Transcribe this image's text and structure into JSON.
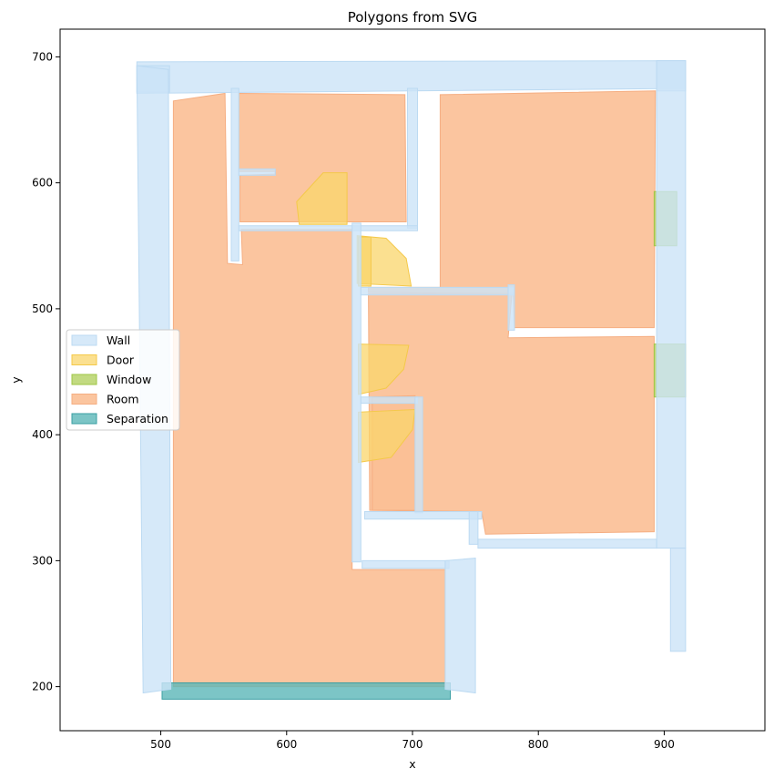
{
  "chart_data": {
    "type": "polygon",
    "title": "Polygons from SVG",
    "xlabel": "x",
    "ylabel": "y",
    "xlim": [
      420,
      980
    ],
    "ylim": [
      165,
      722
    ],
    "xticks": [
      500,
      600,
      700,
      800,
      900
    ],
    "yticks": [
      200,
      300,
      400,
      500,
      600,
      700
    ],
    "legend": {
      "position": "center-left"
    },
    "categories": [
      {
        "name": "Wall",
        "fill": "#cce3f7",
        "edge": "#bcdaf2",
        "alpha": 0.8
      },
      {
        "name": "Door",
        "fill": "#f9d66b",
        "edge": "#f4c94a",
        "alpha": 0.75
      },
      {
        "name": "Window",
        "fill": "#b3d162",
        "edge": "#9fc545",
        "alpha": 0.8
      },
      {
        "name": "Room",
        "fill": "#fbbf95",
        "edge": "#f5ae82",
        "alpha": 0.9
      },
      {
        "name": "Separation",
        "fill": "#5bb6b8",
        "edge": "#3a9fa3",
        "alpha": 0.8
      }
    ],
    "polygons": [
      {
        "category": "Room",
        "points": [
          [
            510,
            200
          ],
          [
            726,
            200
          ],
          [
            726,
            293
          ],
          [
            652,
            293
          ],
          [
            652,
            563
          ],
          [
            564,
            563
          ],
          [
            565,
            535
          ],
          [
            553,
            536
          ],
          [
            551,
            671
          ],
          [
            510,
            665
          ]
        ]
      },
      {
        "category": "Room",
        "points": [
          [
            562,
            671
          ],
          [
            694,
            670
          ],
          [
            695,
            569
          ],
          [
            563,
            569
          ],
          [
            563,
            606
          ],
          [
            591,
            607
          ],
          [
            591,
            609
          ],
          [
            562,
            609
          ]
        ]
      },
      {
        "category": "Room",
        "points": [
          [
            722,
            670
          ],
          [
            893,
            673
          ],
          [
            892,
            485
          ],
          [
            781,
            485
          ],
          [
            780,
            512
          ],
          [
            665,
            513
          ],
          [
            665,
            517
          ],
          [
            722,
            517
          ]
        ]
      },
      {
        "category": "Room",
        "points": [
          [
            665,
            512
          ],
          [
            779,
            512
          ],
          [
            776,
            477
          ],
          [
            892,
            478
          ],
          [
            892,
            323
          ],
          [
            758,
            321
          ],
          [
            755,
            339
          ],
          [
            666,
            340
          ]
        ]
      },
      {
        "category": "Room",
        "points": [
          [
            668,
            430
          ],
          [
            702,
            431
          ],
          [
            702,
            340
          ],
          [
            668,
            340
          ]
        ]
      },
      {
        "category": "Door",
        "points": [
          [
            608,
            585
          ],
          [
            629,
            608
          ],
          [
            648,
            608
          ],
          [
            648,
            567
          ],
          [
            610,
            567
          ]
        ]
      },
      {
        "category": "Door",
        "points": [
          [
            656,
            520
          ],
          [
            656,
            558
          ],
          [
            679,
            556
          ],
          [
            695,
            540
          ],
          [
            699,
            518
          ]
        ]
      },
      {
        "category": "Door",
        "points": [
          [
            657,
            432
          ],
          [
            657,
            472
          ],
          [
            697,
            471
          ],
          [
            693,
            452
          ],
          [
            679,
            437
          ]
        ]
      },
      {
        "category": "Door",
        "points": [
          [
            657,
            378
          ],
          [
            657,
            418
          ],
          [
            702,
            420
          ],
          [
            700,
            404
          ],
          [
            683,
            382
          ]
        ]
      },
      {
        "category": "Door",
        "points": [
          [
            657,
            518
          ],
          [
            657,
            557
          ],
          [
            667,
            557
          ],
          [
            667,
            518
          ]
        ]
      },
      {
        "category": "Window",
        "points": [
          [
            892,
            550
          ],
          [
            910,
            550
          ],
          [
            910,
            593
          ],
          [
            892,
            593
          ]
        ]
      },
      {
        "category": "Window",
        "points": [
          [
            892,
            430
          ],
          [
            917,
            430
          ],
          [
            917,
            472
          ],
          [
            892,
            472
          ]
        ]
      },
      {
        "category": "Separation",
        "points": [
          [
            501,
            190
          ],
          [
            730,
            190
          ],
          [
            730,
            203
          ],
          [
            501,
            203
          ]
        ]
      },
      {
        "category": "Wall",
        "points": [
          [
            481,
            671
          ],
          [
            917,
            675
          ],
          [
            917,
            697
          ],
          [
            481,
            696
          ]
        ]
      },
      {
        "category": "Wall",
        "points": [
          [
            481,
            672
          ],
          [
            507,
            672
          ],
          [
            507,
            693
          ],
          [
            481,
            693
          ]
        ]
      },
      {
        "category": "Wall",
        "points": [
          [
            894,
            673
          ],
          [
            917,
            673
          ],
          [
            917,
            697
          ],
          [
            894,
            697
          ]
        ]
      },
      {
        "category": "Wall",
        "points": [
          [
            481,
            693
          ],
          [
            506,
            690
          ],
          [
            508,
            198
          ],
          [
            486,
            195
          ]
        ]
      },
      {
        "category": "Wall",
        "points": [
          [
            894,
            697
          ],
          [
            917,
            697
          ],
          [
            917,
            310
          ],
          [
            894,
            310
          ]
        ]
      },
      {
        "category": "Wall",
        "points": [
          [
            905,
            310
          ],
          [
            917,
            310
          ],
          [
            917,
            228
          ],
          [
            905,
            228
          ]
        ]
      },
      {
        "category": "Wall",
        "points": [
          [
            556,
            675
          ],
          [
            562,
            675
          ],
          [
            562,
            538
          ],
          [
            556,
            538
          ]
        ]
      },
      {
        "category": "Wall",
        "points": [
          [
            696,
            675
          ],
          [
            704,
            675
          ],
          [
            704,
            564
          ],
          [
            696,
            564
          ]
        ]
      },
      {
        "category": "Wall",
        "points": [
          [
            562,
            566
          ],
          [
            704,
            566
          ],
          [
            704,
            562
          ],
          [
            562,
            562
          ]
        ]
      },
      {
        "category": "Wall",
        "points": [
          [
            562,
            611
          ],
          [
            591,
            611
          ],
          [
            591,
            606
          ],
          [
            562,
            606
          ]
        ]
      },
      {
        "category": "Wall",
        "points": [
          [
            652,
            568
          ],
          [
            659,
            568
          ],
          [
            659,
            299
          ],
          [
            652,
            299
          ]
        ]
      },
      {
        "category": "Wall",
        "points": [
          [
            659,
            517
          ],
          [
            781,
            517
          ],
          [
            781,
            511
          ],
          [
            659,
            511
          ]
        ]
      },
      {
        "category": "Wall",
        "points": [
          [
            776,
            519
          ],
          [
            781,
            519
          ],
          [
            781,
            483
          ],
          [
            776,
            483
          ]
        ]
      },
      {
        "category": "Wall",
        "points": [
          [
            659,
            430
          ],
          [
            704,
            430
          ],
          [
            704,
            425
          ],
          [
            659,
            425
          ]
        ]
      },
      {
        "category": "Wall",
        "points": [
          [
            702,
            430
          ],
          [
            708,
            430
          ],
          [
            708,
            338
          ],
          [
            702,
            338
          ]
        ]
      },
      {
        "category": "Wall",
        "points": [
          [
            662,
            339
          ],
          [
            755,
            339
          ],
          [
            755,
            333
          ],
          [
            662,
            333
          ]
        ]
      },
      {
        "category": "Wall",
        "points": [
          [
            745,
            339
          ],
          [
            752,
            339
          ],
          [
            752,
            313
          ],
          [
            745,
            313
          ]
        ]
      },
      {
        "category": "Wall",
        "points": [
          [
            752,
            317
          ],
          [
            894,
            317
          ],
          [
            894,
            310
          ],
          [
            752,
            310
          ]
        ]
      },
      {
        "category": "Wall",
        "points": [
          [
            660,
            300
          ],
          [
            729,
            300
          ],
          [
            729,
            294
          ],
          [
            660,
            294
          ]
        ]
      },
      {
        "category": "Wall",
        "points": [
          [
            726,
            300
          ],
          [
            750,
            302
          ],
          [
            750,
            195
          ],
          [
            726,
            198
          ]
        ]
      }
    ]
  }
}
